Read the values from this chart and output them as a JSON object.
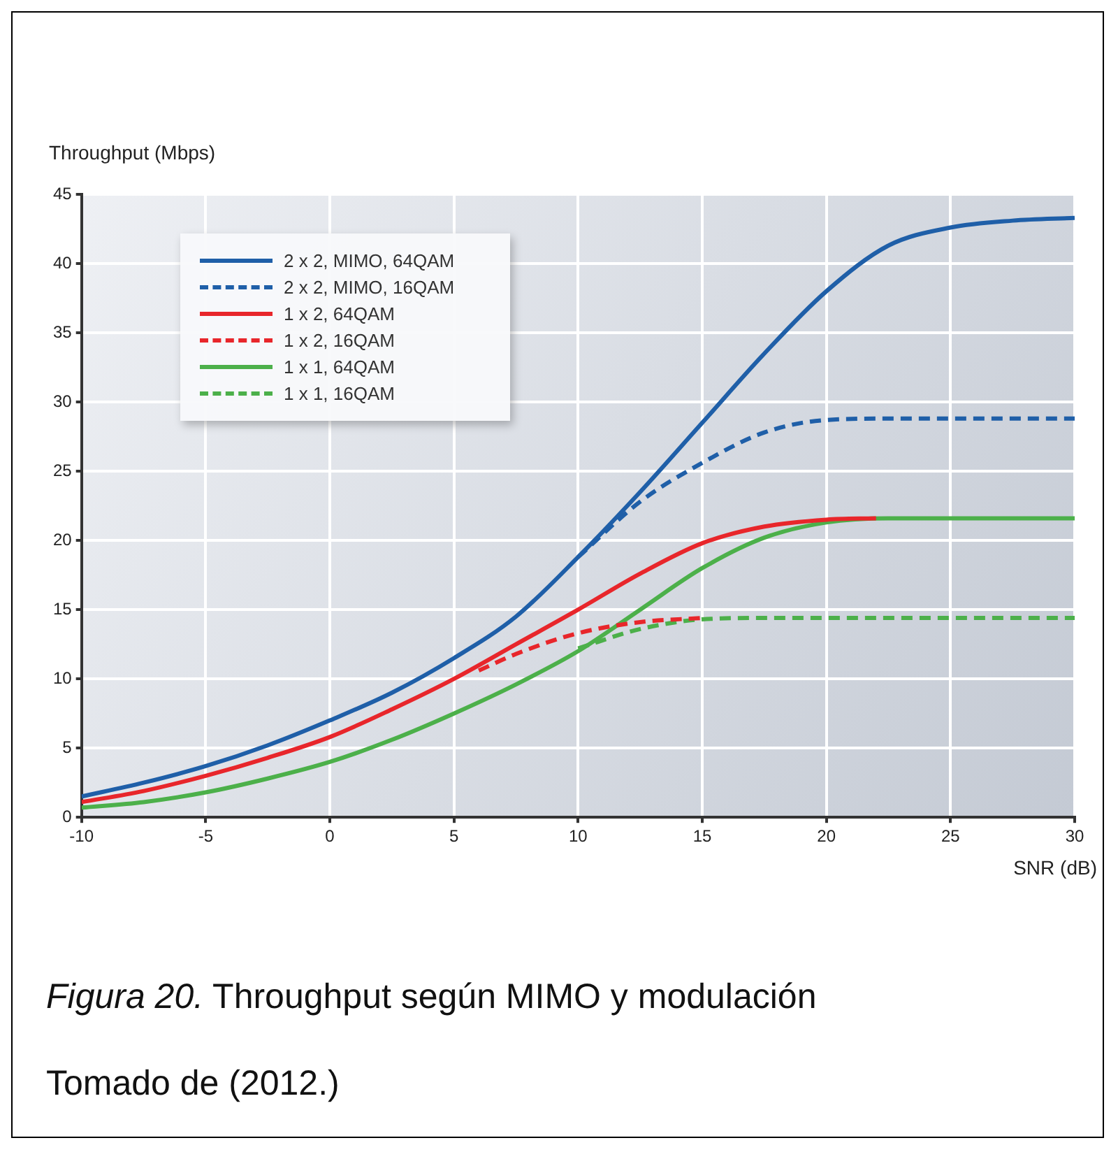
{
  "chart_data": {
    "type": "line",
    "ylabel": "Throughput (Mbps)",
    "xlabel": "SNR (dB)",
    "xlim": [
      -10,
      30
    ],
    "xticks": [
      -10,
      -5,
      0,
      5,
      10,
      15,
      20,
      25,
      30
    ],
    "ylim": [
      0,
      45
    ],
    "yticks": [
      0,
      5,
      10,
      15,
      20,
      25,
      30,
      35,
      40,
      45
    ],
    "grid": true,
    "legend": "top left",
    "marker": "none",
    "series": [
      {
        "name": "2 x 2, MIMO, 64QAM",
        "color": "#1f5fa8",
        "line_style": "solid",
        "x": [
          -10,
          -7.5,
          -5,
          -2.5,
          0,
          2.5,
          5,
          7.5,
          10,
          12.5,
          15,
          17.5,
          20,
          22.5,
          25,
          27.5,
          30
        ],
        "values": [
          1.5,
          2.5,
          3.7,
          5.2,
          7,
          9,
          11.5,
          14.5,
          18.8,
          23.5,
          28.5,
          33.5,
          38,
          41.3,
          42.6,
          43.1,
          43.3
        ]
      },
      {
        "name": "2 x 2, MIMO, 16QAM",
        "color": "#1f5fa8",
        "line_style": "dashed",
        "x": [
          10,
          12.5,
          15,
          17.5,
          20,
          22.5,
          25,
          27.5,
          30
        ],
        "values": [
          18.8,
          22.8,
          25.6,
          27.8,
          28.7,
          28.8,
          28.8,
          28.8,
          28.8
        ]
      },
      {
        "name": "1 x 2, 64QAM",
        "color": "#e8262b",
        "line_style": "solid",
        "x": [
          -10,
          -7.5,
          -5,
          -2.5,
          0,
          2.5,
          5,
          7.5,
          10,
          12.5,
          15,
          17.5,
          20,
          22
        ],
        "values": [
          1.1,
          1.9,
          3,
          4.3,
          5.8,
          7.8,
          10,
          12.5,
          15,
          17.6,
          19.8,
          21,
          21.5,
          21.6
        ]
      },
      {
        "name": "1 x 2, 16QAM",
        "color": "#e8262b",
        "line_style": "dashed",
        "x": [
          6,
          7.5,
          10,
          12.5,
          15
        ],
        "values": [
          10.6,
          11.8,
          13.3,
          14.1,
          14.4
        ]
      },
      {
        "name": "1 x 1, 64QAM",
        "color": "#4cb04a",
        "line_style": "solid",
        "x": [
          -10,
          -7.5,
          -5,
          -2.5,
          0,
          2.5,
          5,
          7.5,
          10,
          12.5,
          15,
          17.5,
          20,
          22.5,
          25,
          27.5,
          30
        ],
        "values": [
          0.7,
          1.1,
          1.8,
          2.8,
          4,
          5.6,
          7.5,
          9.6,
          12,
          15,
          18,
          20.2,
          21.3,
          21.6,
          21.6,
          21.6,
          21.6
        ]
      },
      {
        "name": "1 x 1, 16QAM",
        "color": "#4cb04a",
        "line_style": "dashed",
        "x": [
          10,
          12.5,
          15,
          17.5,
          20,
          22.5,
          25,
          27.5,
          30
        ],
        "values": [
          12.2,
          13.6,
          14.3,
          14.4,
          14.4,
          14.4,
          14.4,
          14.4,
          14.4
        ]
      }
    ],
    "annotations": [
      "Figura 20.",
      "Throughput según MIMO y modulación",
      "Tomado de (2012.)"
    ]
  }
}
